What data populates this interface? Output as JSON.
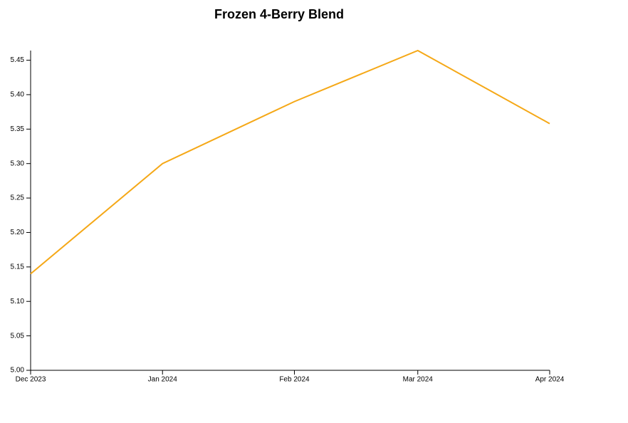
{
  "chart_data": {
    "type": "line",
    "title": "Frozen 4-Berry Blend",
    "x": [
      "Dec 2023",
      "Jan 2024",
      "Feb 2024",
      "Mar 2024",
      "Apr 2024"
    ],
    "values": [
      5.14,
      5.3,
      5.39,
      5.464,
      5.358
    ],
    "color": "#f5a817",
    "ylim": [
      5.0,
      5.464
    ],
    "yticks": [
      {
        "value": 5.0,
        "label": "5.00"
      },
      {
        "value": 5.05,
        "label": "5.05"
      },
      {
        "value": 5.1,
        "label": "5.10"
      },
      {
        "value": 5.15,
        "label": "5.15"
      },
      {
        "value": 5.2,
        "label": "5.20"
      },
      {
        "value": 5.25,
        "label": "5.25"
      },
      {
        "value": 5.3,
        "label": "5.30"
      },
      {
        "value": 5.35,
        "label": "5.35"
      },
      {
        "value": 5.4,
        "label": "5.40"
      },
      {
        "value": 5.45,
        "label": "5.45"
      }
    ],
    "grid": false
  }
}
